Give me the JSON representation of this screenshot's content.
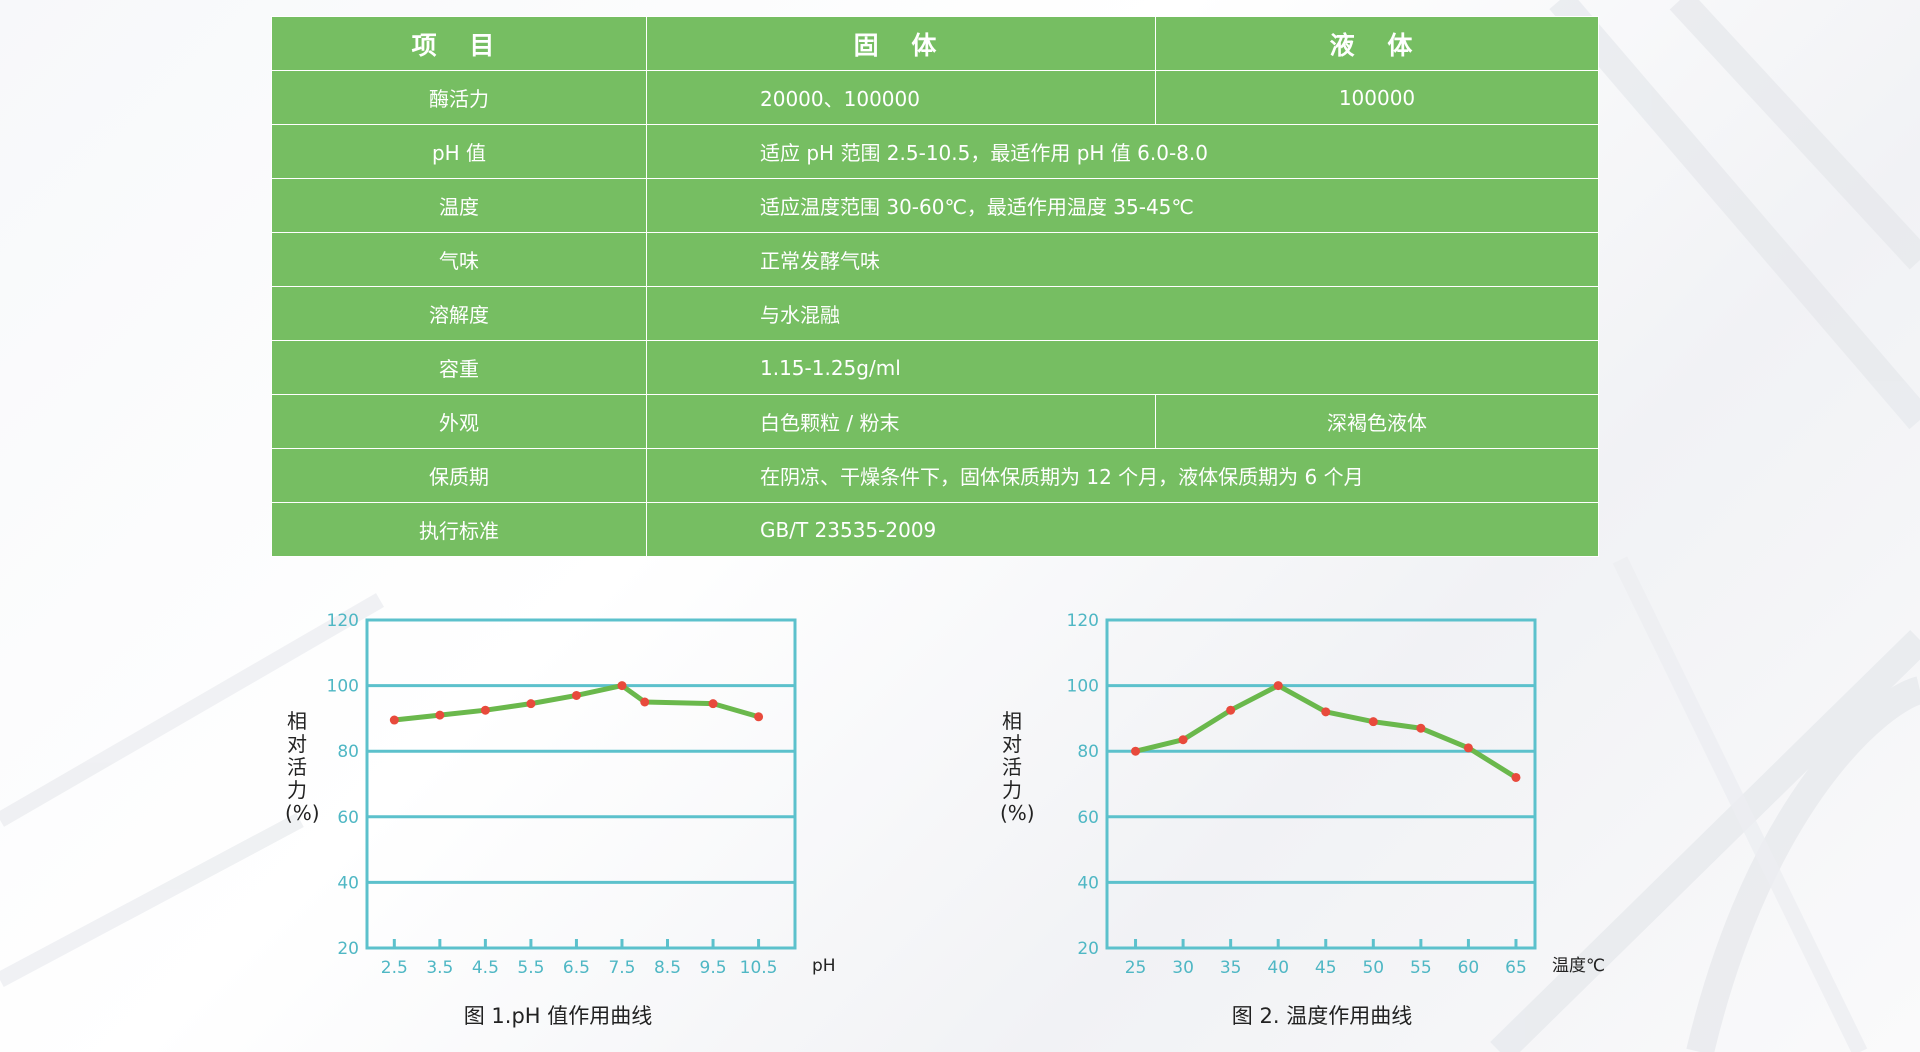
{
  "table": {
    "headers": [
      "项 目",
      "固 体",
      "液 体"
    ],
    "rows": [
      {
        "item": "酶活力",
        "solid": "20000、100000",
        "liquid": "100000"
      },
      {
        "item": "pH 值",
        "value": "适应 pH 范围 2.5-10.5，最适作用 pH 值 6.0-8.0"
      },
      {
        "item": "温度",
        "value": "适应温度范围 30-60℃，最适作用温度 35-45℃"
      },
      {
        "item": "气味",
        "value": "正常发酵气味"
      },
      {
        "item": "溶解度",
        "value": "与水混融"
      },
      {
        "item": "容重",
        "value": "1.15-1.25g/ml"
      },
      {
        "item": "外观",
        "solid": "白色颗粒 / 粉末",
        "liquid": "深褐色液体"
      },
      {
        "item": "保质期",
        "value": "在阴凉、干燥条件下，固体保质期为 12 个月，液体保质期为 6 个月"
      },
      {
        "item": "执行标准",
        "value": "GB/T 23535-2009"
      }
    ]
  },
  "colors": {
    "table_bg": "#76be62",
    "frame": "#5cc1cc",
    "curve": "#6ab84c",
    "point": "#e84a3c",
    "tick_text": "#4fb7c4"
  },
  "chart_data": [
    {
      "type": "line",
      "title": "图 1.pH 值作用曲线",
      "xlabel": "pH",
      "ylabel": "相对活力(%)",
      "y_ticks": [
        20,
        40,
        60,
        80,
        100,
        120
      ],
      "ylim": [
        20,
        120
      ],
      "x_ticks": [
        2.5,
        3.5,
        4.5,
        5.5,
        6.5,
        7.5,
        8.5,
        9.5,
        10.5
      ],
      "xlim": [
        1.9,
        11.3
      ],
      "grid": true,
      "x": [
        2.5,
        3.5,
        4.5,
        5.5,
        6.5,
        7.5,
        8.0,
        9.5,
        10.5
      ],
      "y": [
        89.5,
        91,
        92.5,
        94.5,
        97,
        100,
        95,
        94.5,
        90.5
      ]
    },
    {
      "type": "line",
      "title": "图 2. 温度作用曲线",
      "xlabel": "温度℃",
      "ylabel": "相对活力(%)",
      "y_ticks": [
        20,
        40,
        60,
        80,
        100,
        120
      ],
      "ylim": [
        20,
        120
      ],
      "x_ticks": [
        25,
        30,
        35,
        40,
        45,
        50,
        55,
        60,
        65
      ],
      "xlim": [
        22,
        67
      ],
      "grid": true,
      "x": [
        25,
        30,
        35,
        40,
        45,
        50,
        55,
        60,
        65
      ],
      "y": [
        80,
        83.5,
        92.5,
        100,
        92,
        89,
        87,
        81,
        72
      ]
    }
  ]
}
